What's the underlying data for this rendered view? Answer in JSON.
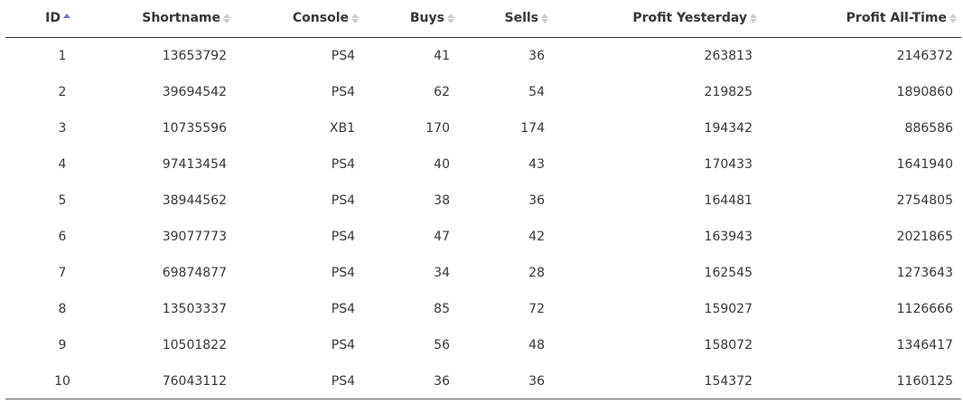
{
  "table": {
    "headers": [
      "ID",
      "Shortname",
      "Console",
      "Buys",
      "Sells",
      "Profit Yesterday",
      "Profit All-Time"
    ],
    "rows": [
      [
        1,
        13653792,
        "PS4",
        41,
        36,
        263813,
        2146372
      ],
      [
        2,
        39694542,
        "PS4",
        62,
        54,
        219825,
        1890860
      ],
      [
        3,
        10735596,
        "XB1",
        170,
        174,
        194342,
        886586
      ],
      [
        4,
        97413454,
        "PS4",
        40,
        43,
        170433,
        1641940
      ],
      [
        5,
        38944562,
        "PS4",
        38,
        36,
        164481,
        2754805
      ],
      [
        6,
        39077773,
        "PS4",
        47,
        42,
        163943,
        2021865
      ],
      [
        7,
        69874877,
        "PS4",
        34,
        28,
        162545,
        1273643
      ],
      [
        8,
        13503337,
        "PS4",
        85,
        72,
        159027,
        1126666
      ],
      [
        9,
        10501822,
        "PS4",
        56,
        48,
        158072,
        1346417
      ],
      [
        10,
        76043112,
        "PS4",
        36,
        36,
        154372,
        1160125
      ]
    ]
  }
}
